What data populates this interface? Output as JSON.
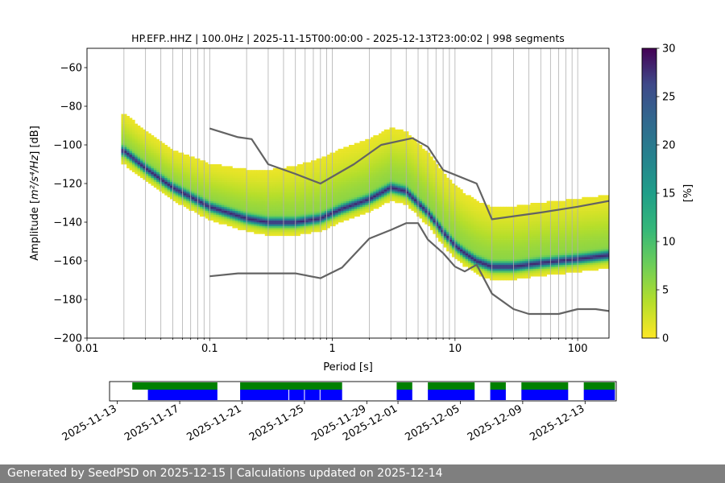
{
  "chart_data": {
    "type": "heatmap",
    "title": "HP.EFP..HHZ | 100.0Hz | 2025-11-15T00:00:00 - 2025-12-13T23:00:02 | 998 segments",
    "xlabel": "Period [s]",
    "ylabel_main": "Amplitude [",
    "ylabel_math": "m²/s⁴/Hz",
    "ylabel_end": "] [dB]",
    "x_scale": "log",
    "xlim": [
      0.01,
      180
    ],
    "ylim": [
      -200,
      -50
    ],
    "x_tick_labels": [
      "0.01",
      "0.1",
      "1",
      "10",
      "100"
    ],
    "y_ticks": [
      -200,
      -180,
      -160,
      -140,
      -120,
      -100,
      -80,
      -60
    ],
    "y_tick_labels": [
      "−200",
      "−180",
      "−160",
      "−140",
      "−120",
      "−100",
      "−80",
      "−60"
    ],
    "grid": "vertical",
    "colormap": "viridis_r",
    "colorbar": {
      "label": "[%]",
      "range": [
        0,
        30
      ],
      "ticks": [
        0,
        5,
        10,
        15,
        20,
        25,
        30
      ],
      "tick_labels": [
        "0",
        "5",
        "10",
        "15",
        "20",
        "25",
        "30"
      ]
    },
    "mode_curve": {
      "period": [
        0.02,
        0.03,
        0.05,
        0.1,
        0.2,
        0.3,
        0.5,
        0.8,
        1.2,
        2,
        3,
        4,
        6,
        8,
        10,
        12,
        15,
        20,
        30,
        50,
        100,
        180
      ],
      "db": [
        -103,
        -112,
        -122,
        -132,
        -138,
        -140,
        -140,
        -138,
        -133,
        -128,
        -122,
        -124,
        -135,
        -145,
        -152,
        -156,
        -160,
        -163,
        -163,
        -161,
        -159,
        -157
      ]
    },
    "series": [
      {
        "name": "",
        "period": [
          0.1,
          0.17,
          0.22,
          0.3,
          0.5,
          0.8,
          1.5,
          2.5,
          4.5,
          6,
          8,
          15,
          20,
          50,
          100,
          180
        ],
        "db": [
          -91.5,
          -96,
          -97,
          -110,
          -115,
          -120,
          -110,
          -100,
          -96.5,
          -101,
          -113,
          -120,
          -138.5,
          -135,
          -132,
          -129
        ]
      },
      {
        "name": "",
        "period": [
          0.1,
          0.17,
          0.22,
          0.3,
          0.5,
          0.8,
          1.2,
          2,
          3,
          4,
          5,
          6,
          8,
          10,
          12,
          15,
          20,
          30,
          40,
          70,
          100,
          140,
          180
        ],
        "db": [
          -168,
          -166.5,
          -166.5,
          -166.5,
          -166.5,
          -169,
          -163.5,
          -148.5,
          -144,
          -140.5,
          -140.5,
          -149,
          -156,
          -163,
          -165.5,
          -162,
          -177,
          -185,
          -187.5,
          -187.5,
          -185,
          -185,
          -186
        ]
      }
    ],
    "availability": {
      "x_tick_labels": [
        "2025-11-13",
        "2025-11-17",
        "2025-11-21",
        "2025-11-25",
        "2025-11-29",
        "2025-12-01",
        "2025-12-05",
        "2025-12-09",
        "2025-12-13"
      ],
      "x_tick_dates": [
        "2025-11-13",
        "2025-11-17",
        "2025-11-21",
        "2025-11-25",
        "2025-11-29",
        "2025-12-01",
        "2025-12-05",
        "2025-12-09",
        "2025-12-13"
      ],
      "range": [
        "2025-11-12T12:00",
        "2025-12-15T00:00"
      ],
      "colors": {
        "processed": "#008000",
        "available": "#0000ff"
      },
      "processed_spans": [
        [
          "2025-11-13T23:00",
          "2025-11-19T10:00"
        ],
        [
          "2025-11-20T21:00",
          "2025-11-27T10:00"
        ],
        [
          "2025-11-30T22:00",
          "2025-12-01T22:00"
        ],
        [
          "2025-12-02T22:00",
          "2025-12-05T22:00"
        ],
        [
          "2025-12-06T22:00",
          "2025-12-07T22:00"
        ],
        [
          "2025-12-08T22:00",
          "2025-12-11T22:00"
        ],
        [
          "2025-12-12T22:00",
          "2025-12-14T22:00"
        ]
      ],
      "available_spans": [
        [
          "2025-11-14T23:00",
          "2025-11-19T10:00"
        ],
        [
          "2025-11-20T21:00",
          "2025-11-27T10:00"
        ],
        [
          "2025-11-30T22:00",
          "2025-12-01T22:00"
        ],
        [
          "2025-12-02T22:00",
          "2025-12-05T22:00"
        ],
        [
          "2025-12-06T22:00",
          "2025-12-07T22:00"
        ],
        [
          "2025-12-08T22:00",
          "2025-12-11T22:00"
        ],
        [
          "2025-12-12T22:00",
          "2025-12-14T22:00"
        ]
      ],
      "gap_marks": [
        "2025-11-24T00:00",
        "2025-11-25T00:00",
        "2025-11-26T00:00"
      ]
    }
  },
  "footer": {
    "text": "Generated by SeedPSD on 2025-12-15 | Calculations updated on 2025-12-14"
  }
}
